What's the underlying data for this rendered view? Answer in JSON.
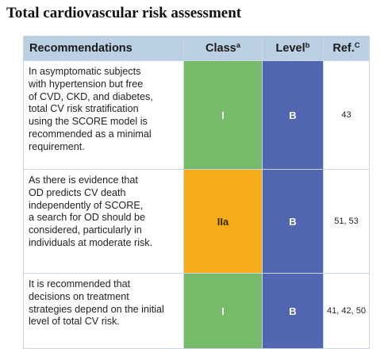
{
  "title": "Total cardiovascular risk assessment",
  "table": {
    "headers": {
      "recommendations": "Recommendations",
      "class_label": "Class",
      "class_sup": "a",
      "level_label": "Level",
      "level_sup": "b",
      "ref_label": "Ref.",
      "ref_sup": "C"
    },
    "rows": [
      {
        "lines": [
          "In asymptomatic subjects",
          "with hypertension but free",
          "of CVD, CKD, and diabetes,",
          "total CV risk stratification",
          "using the SCORE model is",
          "recommended as a minimal",
          "requirement."
        ],
        "class": "I",
        "class_color": "#77bb6a",
        "level": "B",
        "level_color": "#5066b0",
        "ref": "43"
      },
      {
        "lines": [
          "As there is evidence that",
          "OD predicts CV death",
          "independently of SCORE,",
          "a search for OD should be",
          "considered, particularly in",
          "individuals at moderate risk."
        ],
        "class": "IIa",
        "class_color": "#f5ac19",
        "level": "B",
        "level_color": "#5066b0",
        "ref": "51, 53"
      },
      {
        "lines": [
          "It is recommended that",
          "decisions on treatment",
          "strategies depend on the initial",
          "level of total CV risk."
        ],
        "class": "I",
        "class_color": "#77bb6a",
        "level": "B",
        "level_color": "#5066b0",
        "ref": "41, 42, 50"
      }
    ]
  }
}
